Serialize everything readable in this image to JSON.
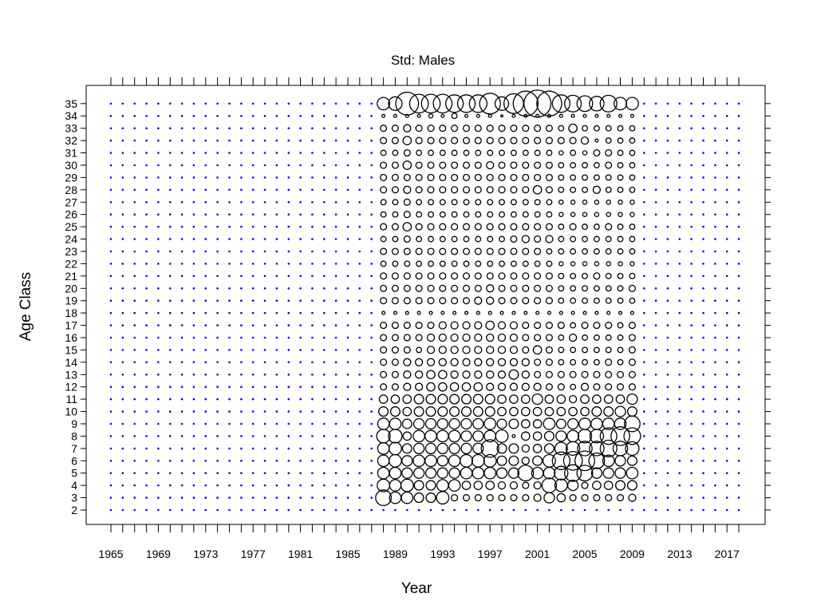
{
  "chart_data": {
    "type": "scatter",
    "subtype": "bubble",
    "title": "Std: Males",
    "xlabel": "Year",
    "ylabel": "Age Class",
    "xlim": [
      1965,
      2018
    ],
    "ylim": [
      2,
      35
    ],
    "x_tick_labels": [
      "1965",
      "1969",
      "1973",
      "1977",
      "1981",
      "1985",
      "1989",
      "1993",
      "1997",
      "2001",
      "2005",
      "2009",
      "2013",
      "2017"
    ],
    "y_tick_labels": [
      "2",
      "3",
      "4",
      "5",
      "6",
      "7",
      "8",
      "9",
      "10",
      "11",
      "12",
      "13",
      "14",
      "15",
      "16",
      "17",
      "18",
      "19",
      "20",
      "21",
      "22",
      "23",
      "24",
      "25",
      "26",
      "27",
      "28",
      "29",
      "30",
      "31",
      "32",
      "33",
      "34",
      "35"
    ],
    "grid": false,
    "legend": "none",
    "colors": {
      "no_data_point": "#0000ff",
      "bubble": "#000000"
    },
    "data_years": [
      1988,
      2009
    ],
    "no_data_marker": "small blue dot (no observation)",
    "residuals_by_age": {
      "35": [
        1.2,
        1.3,
        2.2,
        1.8,
        1.8,
        1.8,
        1.7,
        1.7,
        1.7,
        2.0,
        1.3,
        1.9,
        2.4,
        2.6,
        2.4,
        1.7,
        1.6,
        1.5,
        1.4,
        1.6,
        1.2,
        1.2
      ],
      "34": [
        0.3,
        0.3,
        0.3,
        0.3,
        0.4,
        0.3,
        0.5,
        0.3,
        0.3,
        0.3,
        0.2,
        0.3,
        0.3,
        0.3,
        0.3,
        0.3,
        0.3,
        0.3,
        0.3,
        0.3,
        0.3,
        0.3
      ],
      "33": [
        0.6,
        0.6,
        0.7,
        0.6,
        0.6,
        0.6,
        0.6,
        0.6,
        0.6,
        0.6,
        0.6,
        0.6,
        0.6,
        0.6,
        0.6,
        0.5,
        0.8,
        0.5,
        0.5,
        0.5,
        0.5,
        0.5
      ],
      "32": [
        0.6,
        0.6,
        0.8,
        0.6,
        0.6,
        0.6,
        0.6,
        0.6,
        0.6,
        0.6,
        0.6,
        0.6,
        0.6,
        0.6,
        0.6,
        0.6,
        0.6,
        0.7,
        0.3,
        0.5,
        0.5,
        0.5
      ],
      "31": [
        0.5,
        0.5,
        0.6,
        0.5,
        0.5,
        0.5,
        0.5,
        0.5,
        0.5,
        0.5,
        0.5,
        0.5,
        0.5,
        0.5,
        0.5,
        0.4,
        0.5,
        0.4,
        0.6,
        0.6,
        0.5,
        0.5
      ],
      "30": [
        0.6,
        0.6,
        0.8,
        0.6,
        0.6,
        0.6,
        0.6,
        0.6,
        0.6,
        0.7,
        0.6,
        0.6,
        0.6,
        0.6,
        0.6,
        0.5,
        0.5,
        0.5,
        0.5,
        0.6,
        0.5,
        0.5
      ],
      "29": [
        0.6,
        0.6,
        0.6,
        0.6,
        0.6,
        0.6,
        0.6,
        0.6,
        0.6,
        0.6,
        0.6,
        0.6,
        0.6,
        0.6,
        0.6,
        0.5,
        0.5,
        0.5,
        0.5,
        0.5,
        0.5,
        0.5
      ],
      "28": [
        0.6,
        0.6,
        0.7,
        0.6,
        0.6,
        0.6,
        0.6,
        0.6,
        0.6,
        0.6,
        0.6,
        0.6,
        0.6,
        0.8,
        0.6,
        0.5,
        0.5,
        0.5,
        0.7,
        0.5,
        0.5,
        0.5
      ],
      "27": [
        0.5,
        0.5,
        0.6,
        0.5,
        0.5,
        0.5,
        0.5,
        0.5,
        0.5,
        0.5,
        0.5,
        0.5,
        0.5,
        0.5,
        0.5,
        0.4,
        0.4,
        0.4,
        0.4,
        0.4,
        0.4,
        0.4
      ],
      "26": [
        0.5,
        0.5,
        0.6,
        0.5,
        0.5,
        0.5,
        0.5,
        0.5,
        0.5,
        0.5,
        0.5,
        0.5,
        0.5,
        0.5,
        0.5,
        0.4,
        0.4,
        0.4,
        0.4,
        0.4,
        0.4,
        0.4
      ],
      "25": [
        0.6,
        0.6,
        0.8,
        0.6,
        0.6,
        0.6,
        0.6,
        0.6,
        0.6,
        0.6,
        0.6,
        0.6,
        0.6,
        0.6,
        0.6,
        0.5,
        0.6,
        0.5,
        0.5,
        0.6,
        0.5,
        0.5
      ],
      "24": [
        0.5,
        0.5,
        0.6,
        0.5,
        0.5,
        0.5,
        0.5,
        0.5,
        0.5,
        0.5,
        0.5,
        0.6,
        0.7,
        0.6,
        0.7,
        0.5,
        0.5,
        0.5,
        0.5,
        0.5,
        0.5,
        0.5
      ],
      "23": [
        0.6,
        0.6,
        0.6,
        0.6,
        0.6,
        0.6,
        0.6,
        0.6,
        0.6,
        0.6,
        0.6,
        0.6,
        0.6,
        0.6,
        0.5,
        0.5,
        0.5,
        0.5,
        0.5,
        0.5,
        0.5,
        0.5
      ],
      "22": [
        0.5,
        0.5,
        0.5,
        0.5,
        0.5,
        0.5,
        0.5,
        0.5,
        0.5,
        0.5,
        0.5,
        0.5,
        0.5,
        0.5,
        0.5,
        0.4,
        0.4,
        0.4,
        0.4,
        0.4,
        0.4,
        0.4
      ],
      "21": [
        0.6,
        0.6,
        0.6,
        0.6,
        0.6,
        0.6,
        0.6,
        0.6,
        0.6,
        0.6,
        0.6,
        0.6,
        0.6,
        0.6,
        0.6,
        0.5,
        0.5,
        0.5,
        0.6,
        0.5,
        0.5,
        0.5
      ],
      "20": [
        0.6,
        0.6,
        0.6,
        0.6,
        0.6,
        0.6,
        0.6,
        0.6,
        0.6,
        0.7,
        0.6,
        0.6,
        0.6,
        0.6,
        0.6,
        0.5,
        0.5,
        0.5,
        0.5,
        0.5,
        0.5,
        0.6
      ],
      "19": [
        0.6,
        0.6,
        0.6,
        0.6,
        0.6,
        0.6,
        0.6,
        0.6,
        0.7,
        0.7,
        0.6,
        0.6,
        0.6,
        0.6,
        0.6,
        0.5,
        0.5,
        0.5,
        0.5,
        0.5,
        0.5,
        0.5
      ],
      "18": [
        0.3,
        0.3,
        0.3,
        0.3,
        0.3,
        0.3,
        0.3,
        0.3,
        0.3,
        0.3,
        0.3,
        0.3,
        0.3,
        0.3,
        0.3,
        0.3,
        0.3,
        0.3,
        0.3,
        0.3,
        0.3,
        0.3
      ],
      "17": [
        0.6,
        0.6,
        0.6,
        0.6,
        0.6,
        0.7,
        0.7,
        0.7,
        0.7,
        0.8,
        0.7,
        0.7,
        0.6,
        0.6,
        0.6,
        0.6,
        0.5,
        0.6,
        0.6,
        0.6,
        0.5,
        0.6
      ],
      "16": [
        0.6,
        0.6,
        0.6,
        0.6,
        0.7,
        0.7,
        0.7,
        0.7,
        0.7,
        0.7,
        0.7,
        0.7,
        0.6,
        0.6,
        0.6,
        0.5,
        0.7,
        0.5,
        0.5,
        0.5,
        0.5,
        0.6
      ],
      "15": [
        0.6,
        0.6,
        0.6,
        0.5,
        0.7,
        0.7,
        0.7,
        0.7,
        0.7,
        0.7,
        0.7,
        0.7,
        0.6,
        0.8,
        0.6,
        0.5,
        0.5,
        0.5,
        0.5,
        0.5,
        0.5,
        0.6
      ],
      "14": [
        0.6,
        0.6,
        0.7,
        0.7,
        0.7,
        0.7,
        0.7,
        0.7,
        0.7,
        0.7,
        0.7,
        0.7,
        0.7,
        0.6,
        0.6,
        0.5,
        0.5,
        0.5,
        0.5,
        0.6,
        0.5,
        0.6
      ],
      "13": [
        0.6,
        0.6,
        0.7,
        0.7,
        0.8,
        0.8,
        0.7,
        0.7,
        0.7,
        0.7,
        0.7,
        0.9,
        0.7,
        0.6,
        0.6,
        0.6,
        0.6,
        0.6,
        0.6,
        0.6,
        0.6,
        0.6
      ],
      "12": [
        0.6,
        0.6,
        0.7,
        0.7,
        0.8,
        0.8,
        0.8,
        0.8,
        0.8,
        0.7,
        0.7,
        0.7,
        0.7,
        0.7,
        0.6,
        0.6,
        0.5,
        0.7,
        0.6,
        0.6,
        0.6,
        0.6
      ],
      "11": [
        0.8,
        0.8,
        0.8,
        0.9,
        0.9,
        0.9,
        0.9,
        0.9,
        0.9,
        0.9,
        0.8,
        0.8,
        0.8,
        1.0,
        0.8,
        0.8,
        0.7,
        0.8,
        0.8,
        0.8,
        0.8,
        1.0
      ],
      "10": [
        0.9,
        0.9,
        0.8,
        0.9,
        0.9,
        0.9,
        0.9,
        0.9,
        0.9,
        0.9,
        0.8,
        0.8,
        0.8,
        0.8,
        0.8,
        0.8,
        0.8,
        0.8,
        0.9,
        0.9,
        1.0,
        0.9
      ],
      "9": [
        1.1,
        1.1,
        0.9,
        1.0,
        1.0,
        1.0,
        1.0,
        1.0,
        1.0,
        1.1,
        0.9,
        0.9,
        0.8,
        0.8,
        1.1,
        0.9,
        1.0,
        1.1,
        1.1,
        1.1,
        1.1,
        1.5
      ],
      "8": [
        1.3,
        1.3,
        0.8,
        1.1,
        1.1,
        1.1,
        1.1,
        1.0,
        1.0,
        1.1,
        1.2,
        0.3,
        0.8,
        0.8,
        0.9,
        1.0,
        1.1,
        1.3,
        1.3,
        1.6,
        1.8,
        1.6
      ],
      "7": [
        1.1,
        1.2,
        0.9,
        1.0,
        1.0,
        1.0,
        1.0,
        1.0,
        1.0,
        1.7,
        0.9,
        0.9,
        0.7,
        0.8,
        0.9,
        1.2,
        1.3,
        1.4,
        1.4,
        1.6,
        1.4,
        1.3
      ],
      "6": [
        1.1,
        1.2,
        1.0,
        1.1,
        1.1,
        1.0,
        1.1,
        1.2,
        1.2,
        1.2,
        0.9,
        0.9,
        0.7,
        0.9,
        1.2,
        1.7,
        1.8,
        1.9,
        1.5,
        1.1,
        1.0,
        0.9
      ],
      "5": [
        1.1,
        1.1,
        1.0,
        1.0,
        1.0,
        1.0,
        1.0,
        1.1,
        1.1,
        1.1,
        1.0,
        1.0,
        1.5,
        1.1,
        1.1,
        1.3,
        1.6,
        1.5,
        1.0,
        1.0,
        1.0,
        1.1
      ],
      "4": [
        1.2,
        1.1,
        1.2,
        0.9,
        0.9,
        1.1,
        1.1,
        0.8,
        0.8,
        0.8,
        0.7,
        0.7,
        0.6,
        0.7,
        1.4,
        1.2,
        1.0,
        0.6,
        0.8,
        0.8,
        0.9,
        0.9
      ],
      "3": [
        1.5,
        1.1,
        1.1,
        0.9,
        0.9,
        1.2,
        0.6,
        0.6,
        0.6,
        0.6,
        0.6,
        0.6,
        0.6,
        0.7,
        1.0,
        0.8,
        0.6,
        0.6,
        0.6,
        0.6,
        0.6,
        0.7
      ],
      "2": []
    }
  }
}
